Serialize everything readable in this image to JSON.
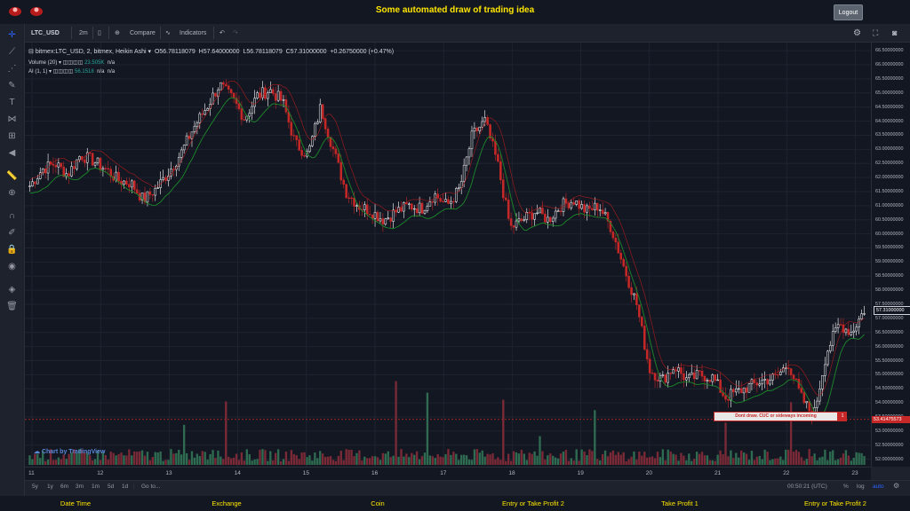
{
  "header": {
    "title": "Some automated draw of trading idea",
    "logout_label": "Logout"
  },
  "toolbar": {
    "symbol": "LTC_USD",
    "interval": "2m",
    "compare": "Compare",
    "indicators": "Indicators"
  },
  "legend": {
    "symbol_line": "bitmex:LTC_USD, 2, bitmex, Heikin Ashi",
    "open": "O56.78118079",
    "high": "H57.64000000",
    "low": "L56.78118079",
    "close": "C57.31000000",
    "change": "+0.26750000 (+0.47%)",
    "volume_label": "Volume (20)",
    "volume_value": "23.505K",
    "volume_na": "n/a",
    "ai_label": "AI (1, 1)",
    "ai_value": "56.1518",
    "ai_na1": "n/a",
    "ai_na2": "n/a"
  },
  "price_axis": {
    "labels": [
      "66.50000000",
      "66.00000000",
      "65.50000000",
      "65.00000000",
      "64.50000000",
      "64.00000000",
      "63.50000000",
      "63.00000000",
      "62.50000000",
      "62.00000000",
      "61.50000000",
      "61.00000000",
      "60.50000000",
      "60.00000000",
      "59.50000000",
      "59.00000000",
      "58.50000000",
      "58.00000000",
      "57.50000000",
      "57.00000000",
      "56.50000000",
      "56.00000000",
      "55.50000000",
      "55.00000000",
      "54.50000000",
      "54.00000000",
      "53.50000000",
      "53.00000000",
      "52.50000000",
      "52.00000000"
    ],
    "current_price": "57.31000000",
    "line_price": "53.41475573"
  },
  "time_axis": [
    "11",
    "12",
    "13",
    "14",
    "15",
    "16",
    "17",
    "18",
    "19",
    "20",
    "21",
    "22",
    "23"
  ],
  "annotation": {
    "text": "Dont draw. CUC or sideways incoming",
    "badge": "1"
  },
  "watermark": "Chart by TradingView",
  "bottom": {
    "ranges": [
      "5y",
      "1y",
      "6m",
      "3m",
      "1m",
      "5d",
      "1d"
    ],
    "goto": "Go to...",
    "clock": "00:50:21 (UTC)",
    "percent": "%",
    "log": "log",
    "auto": "auto"
  },
  "footer": {
    "labels": [
      "Date Time",
      "Exchange",
      "Coin",
      "Entry or Take Profit 2",
      "Take Profit 1",
      "Entry or Take Profit 2"
    ]
  },
  "colors": {
    "up": "#ffffff",
    "down": "#c62828",
    "ma_green": "#1b8a2a",
    "ma_red": "#b71c1c",
    "title": "#ffe600",
    "vol_up": "#2e6b50",
    "vol_down": "#7a2a36"
  },
  "chart_data": {
    "type": "candlestick",
    "title": "bitmex:LTC_USD, 2, bitmex, Heikin Ashi",
    "x_labels": [
      "11",
      "12",
      "13",
      "14",
      "15",
      "16",
      "17",
      "18",
      "19",
      "20",
      "21",
      "22",
      "23"
    ],
    "ylim": [
      51.8,
      66.6
    ],
    "close_series": [
      61.7,
      62.3,
      62.5,
      62.1,
      62.8,
      62.6,
      62.3,
      61.9,
      61.8,
      61.2,
      61.6,
      62.2,
      62.9,
      63.8,
      64.5,
      65.3,
      64.8,
      64.1,
      64.9,
      65.1,
      64.7,
      63.2,
      62.8,
      64.5,
      63.0,
      61.5,
      61.0,
      60.8,
      60.5,
      60.8,
      61.0,
      60.9,
      61.4,
      61.0,
      61.6,
      63.5,
      64.0,
      62.5,
      60.2,
      60.5,
      60.8,
      60.5,
      61.0,
      61.2,
      60.8,
      61.0,
      60.2,
      58.8,
      57.5,
      55.2,
      54.8,
      55.3,
      54.8,
      55.0,
      54.9,
      54.2,
      54.4,
      54.6,
      54.8,
      54.9,
      55.4,
      54.2,
      53.5,
      55.8,
      56.8,
      56.5,
      57.3
    ],
    "reference_line": 53.41475573
  }
}
